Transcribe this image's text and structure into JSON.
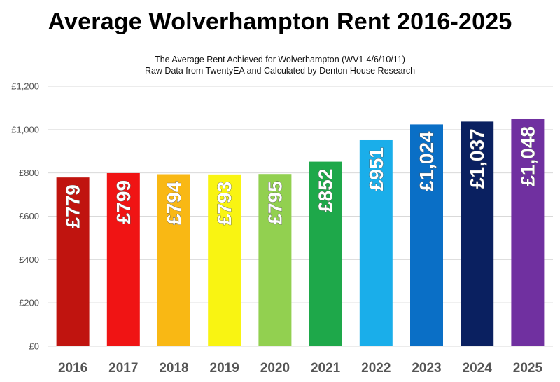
{
  "chart_data": {
    "type": "bar",
    "title": "Average Wolverhampton Rent 2016-2025",
    "subtitle_lines": [
      "The Average Rent Achieved for Wolverhampton (WV1-4/6/10/11)",
      "Raw Data from TwentyEA and Calculated by Denton House Research"
    ],
    "categories": [
      "2016",
      "2017",
      "2018",
      "2019",
      "2020",
      "2021",
      "2022",
      "2023",
      "2024",
      "2025"
    ],
    "values": [
      779,
      799,
      794,
      793,
      795,
      852,
      951,
      1024,
      1037,
      1048
    ],
    "data_labels": [
      "£779",
      "£799",
      "£794",
      "£793",
      "£795",
      "£852",
      "£951",
      "£1,024",
      "£1,037",
      "£1,048"
    ],
    "colors": [
      "#c0140f",
      "#f01414",
      "#f9b814",
      "#f9f412",
      "#92d050",
      "#1ea84a",
      "#1aaeea",
      "#0a6fc6",
      "#0a2060",
      "#7030a0"
    ],
    "ylim": [
      0,
      1200
    ],
    "yticks": [
      0,
      200,
      400,
      600,
      800,
      1000,
      1200
    ],
    "ytick_labels": [
      "£0",
      "£200",
      "£400",
      "£600",
      "£800",
      "£1,000",
      "£1,200"
    ],
    "grid": true,
    "legend": "none",
    "xlabel": "",
    "ylabel": ""
  }
}
